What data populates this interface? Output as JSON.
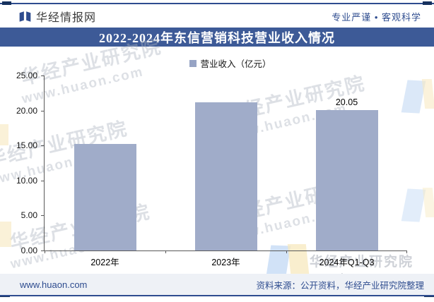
{
  "header": {
    "brand": "华经情报网",
    "tagline": "专业严谨 • 客观科学"
  },
  "title_banner": "2022-2024年东信营销科技营业收入情况",
  "legend": {
    "label": "营业收入（亿元）"
  },
  "chart_data": {
    "type": "bar",
    "title": "2022-2024年东信营销科技营业收入情况",
    "legend": [
      "营业收入（亿元）"
    ],
    "categories": [
      "2022年",
      "2023年",
      "2024年Q1-Q3"
    ],
    "values": [
      15.2,
      21.2,
      20.05
    ],
    "data_labels": [
      "",
      "",
      "20.05"
    ],
    "ylabel": "",
    "xlabel": "",
    "ylim": [
      0,
      25
    ],
    "ytick_step": 5,
    "ytick_labels": [
      "0.00",
      "5.00",
      "10.00",
      "15.00",
      "20.00",
      "25.00"
    ],
    "grid": false,
    "legend_position": "top",
    "bar_color": "#a0acc9"
  },
  "watermark": {
    "cn": "华经产业研究院",
    "url": "www.huaon.com"
  },
  "footer": {
    "site": "www.huaon.com",
    "source": "资料来源：公开资料，华经产业研究院整理"
  },
  "colors": {
    "banner_bg": "#3d5a97",
    "navy_text": "#2e4c8f",
    "bar_fill": "#a0acc9",
    "legend_marker": "#96a3c4",
    "footer_bg": "#eef1f6",
    "axis_line": "#595959"
  }
}
